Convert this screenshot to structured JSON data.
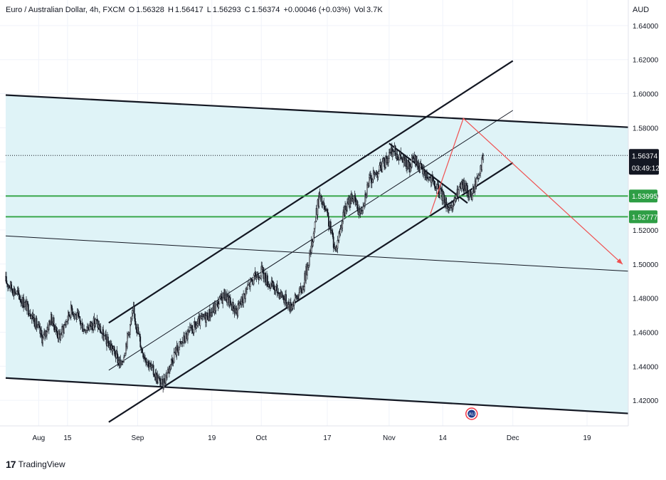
{
  "header": {
    "symbol_name": "Euro / Australian Dollar, 4h, FXCM",
    "open_label": "O",
    "open": "1.56328",
    "high_label": "H",
    "high": "1.56417",
    "low_label": "L",
    "low": "1.56293",
    "close_label": "C",
    "close": "1.56374",
    "change": "+0.00046 (+0.03%)",
    "volume_label": "Vol",
    "volume": "3.7K"
  },
  "currency": "AUD",
  "branding": {
    "name": "TradingView"
  },
  "colors": {
    "channel_fill": "#dff3f7",
    "support_lines": "#3aa84d",
    "projection": "#f05050",
    "trend_lines": "#131722",
    "price_label_bg": "#131722",
    "level_label_bg": "#2e9e45"
  },
  "chart_data": {
    "type": "candlestick",
    "timeframe": "4h",
    "ylim": [
      1.405,
      1.655
    ],
    "y_ticks": [
      1.42,
      1.44,
      1.46,
      1.48,
      1.5,
      1.52,
      1.54,
      1.56,
      1.58,
      1.6,
      1.62,
      1.64
    ],
    "y_tick_labels": [
      "1.42000",
      "1.44000",
      "1.46000",
      "1.48000",
      "1.50000",
      "1.52000",
      "1.54000",
      "1.56000",
      "1.58000",
      "1.60000",
      "1.62000",
      "1.64000"
    ],
    "x_ticks": [
      {
        "label": "Aug",
        "day": 8
      },
      {
        "label": "15",
        "day": 15
      },
      {
        "label": "Sep",
        "day": 32
      },
      {
        "label": "19",
        "day": 50
      },
      {
        "label": "Oct",
        "day": 62
      },
      {
        "label": "17",
        "day": 78
      },
      {
        "label": "Nov",
        "day": 93
      },
      {
        "label": "14",
        "day": 106
      },
      {
        "label": "Dec",
        "day": 123
      },
      {
        "label": "19",
        "day": 141
      }
    ],
    "xlim": [
      0,
      151
    ],
    "last_price": {
      "value": 1.56374,
      "label": "1.56374",
      "countdown": "03:49:12"
    },
    "horizontal_levels": [
      {
        "value": 1.53995,
        "label": "1.53995"
      },
      {
        "value": 1.52777,
        "label": "1.52777"
      }
    ],
    "price_path": [
      [
        0,
        1.49
      ],
      [
        3,
        1.482
      ],
      [
        6,
        1.472
      ],
      [
        9,
        1.456
      ],
      [
        11,
        1.468
      ],
      [
        13,
        1.457
      ],
      [
        16,
        1.474
      ],
      [
        19,
        1.462
      ],
      [
        22,
        1.466
      ],
      [
        24,
        1.456
      ],
      [
        26,
        1.45
      ],
      [
        28,
        1.44
      ],
      [
        30,
        1.462
      ],
      [
        31,
        1.472
      ],
      [
        33,
        1.45
      ],
      [
        35,
        1.44
      ],
      [
        37,
        1.432
      ],
      [
        38,
        1.429
      ],
      [
        41,
        1.448
      ],
      [
        44,
        1.458
      ],
      [
        47,
        1.466
      ],
      [
        50,
        1.472
      ],
      [
        53,
        1.482
      ],
      [
        56,
        1.472
      ],
      [
        59,
        1.488
      ],
      [
        62,
        1.496
      ],
      [
        64,
        1.488
      ],
      [
        67,
        1.482
      ],
      [
        69,
        1.475
      ],
      [
        72,
        1.486
      ],
      [
        74,
        1.508
      ],
      [
        76,
        1.54
      ],
      [
        78,
        1.528
      ],
      [
        80,
        1.508
      ],
      [
        82,
        1.53
      ],
      [
        84,
        1.54
      ],
      [
        86,
        1.53
      ],
      [
        88,
        1.548
      ],
      [
        90,
        1.554
      ],
      [
        92,
        1.56
      ],
      [
        94,
        1.567
      ],
      [
        96,
        1.562
      ],
      [
        98,
        1.556
      ],
      [
        99,
        1.562
      ],
      [
        101,
        1.555
      ],
      [
        103,
        1.55
      ],
      [
        104,
        1.546
      ],
      [
        106,
        1.54
      ],
      [
        108,
        1.53
      ],
      [
        109,
        1.538
      ],
      [
        110,
        1.544
      ],
      [
        111,
        1.546
      ],
      [
        113,
        1.54
      ],
      [
        114,
        1.548
      ],
      [
        115,
        1.556
      ],
      [
        116,
        1.5637
      ]
    ],
    "trend_lines": [
      {
        "name": "outer-channel-top",
        "width": 2.2,
        "points": [
          [
            0,
            1.5992
          ],
          [
            151,
            1.5803
          ]
        ]
      },
      {
        "name": "outer-channel-bottom",
        "width": 2.2,
        "points": [
          [
            0,
            1.4331
          ],
          [
            151,
            1.4123
          ]
        ]
      },
      {
        "name": "outer-channel-mid",
        "width": 1,
        "points": [
          [
            0,
            1.5165
          ],
          [
            151,
            1.4958
          ]
        ]
      },
      {
        "name": "rising-channel-top",
        "width": 2.2,
        "points": [
          [
            25,
            1.4655
          ],
          [
            123,
            1.6193
          ]
        ]
      },
      {
        "name": "rising-channel-bottom",
        "width": 2.2,
        "points": [
          [
            25,
            1.4072
          ],
          [
            123,
            1.5595
          ]
        ]
      },
      {
        "name": "rising-channel-mid",
        "width": 1,
        "points": [
          [
            25,
            1.4377
          ],
          [
            123,
            1.5902
          ]
        ]
      },
      {
        "name": "falling-wedge-line",
        "width": 2.2,
        "points": [
          [
            93,
            1.5708
          ],
          [
            112,
            1.5358
          ]
        ]
      }
    ],
    "projection": [
      [
        103,
        1.5294
      ],
      [
        111,
        1.5855
      ],
      [
        151,
        1.4978
      ]
    ],
    "events": [
      {
        "day": 113,
        "label": "AU"
      }
    ]
  }
}
